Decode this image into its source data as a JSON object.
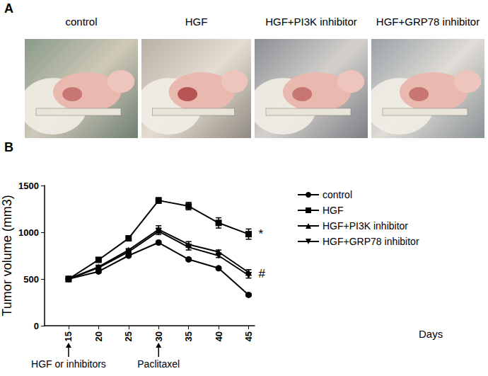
{
  "panel_a": {
    "label": "A",
    "captions": [
      "control",
      "HGF",
      "HGF+PI3K inhibitor",
      "HGF+GRP78 inhibitor"
    ]
  },
  "chart_data": {
    "type": "line",
    "panel_label": "B",
    "x_label": "Days",
    "y_label": "Tumor volume (mm3)",
    "x": [
      15,
      20,
      25,
      30,
      35,
      40,
      45
    ],
    "xlim": [
      11,
      46
    ],
    "xticks": [
      15,
      20,
      25,
      30,
      35,
      40,
      45
    ],
    "ylim": [
      0,
      1500
    ],
    "yticks": [
      0,
      500,
      1000,
      1500
    ],
    "grid": false,
    "legend": "right",
    "series": [
      {
        "name": "control",
        "color": "#000000",
        "marker": "circle",
        "values": [
          500,
          580,
          750,
          890,
          710,
          615,
          330
        ],
        "errors": [
          8,
          12,
          12,
          15,
          15,
          12,
          12
        ]
      },
      {
        "name": "HGF",
        "color": "#000000",
        "marker": "square",
        "values": [
          500,
          705,
          935,
          1340,
          1280,
          1100,
          980
        ],
        "errors": [
          8,
          15,
          18,
          30,
          40,
          55,
          55
        ]
      },
      {
        "name": "HGF+PI3K inhibitor",
        "color": "#000000",
        "marker": "triangle",
        "values": [
          500,
          630,
          810,
          1030,
          870,
          790,
          570
        ],
        "errors": [
          8,
          12,
          15,
          40,
          30,
          20,
          30
        ]
      },
      {
        "name": "HGF+GRP78 inhibitor",
        "color": "#000000",
        "marker": "triangle-down",
        "values": [
          500,
          620,
          790,
          1010,
          840,
          750,
          540
        ],
        "errors": [
          8,
          12,
          15,
          35,
          30,
          20,
          30
        ]
      }
    ],
    "annotations": [
      {
        "text": "*",
        "x": 45,
        "y": 980
      },
      {
        "text": "#",
        "x": 45,
        "y": 555
      }
    ],
    "x_annotations": [
      {
        "text": "HGF or inhibitors",
        "x": 15
      },
      {
        "text": "Paclitaxel",
        "x": 30
      }
    ]
  }
}
